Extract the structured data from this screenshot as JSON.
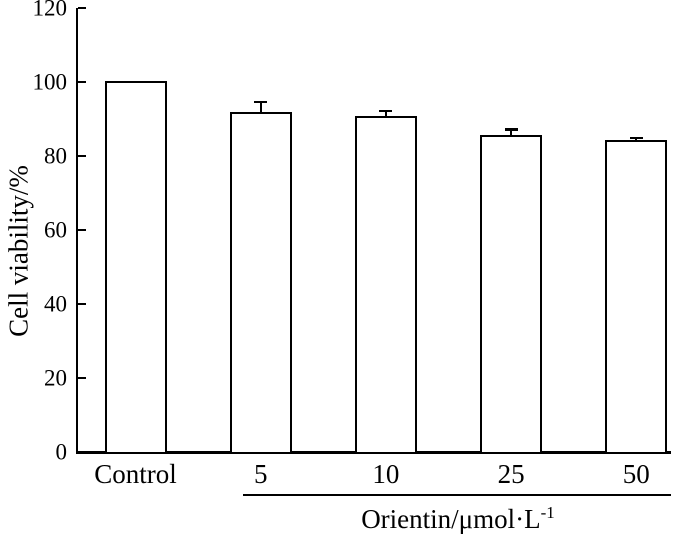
{
  "chart_data": {
    "type": "bar",
    "categories": [
      "Control",
      "5",
      "10",
      "25",
      "50"
    ],
    "values": [
      100,
      91.5,
      90.5,
      85.5,
      84
    ],
    "errors": [
      0,
      3.2,
      1.6,
      1.7,
      0.8
    ],
    "ylabel": "Cell viability/%",
    "xlabel_base": "Orientin/μmol·L",
    "xlabel_superscript": "-1",
    "ylim": [
      0,
      120
    ],
    "yticks": [
      0,
      20,
      40,
      60,
      80,
      100,
      120
    ],
    "grid": "off",
    "legend": "none",
    "bar_fill_color": "#ffffff",
    "bar_border_color": "#000000",
    "error_bar_style": "upper stem with cap",
    "underlined_group_categories": [
      "5",
      "10",
      "25",
      "50"
    ]
  }
}
